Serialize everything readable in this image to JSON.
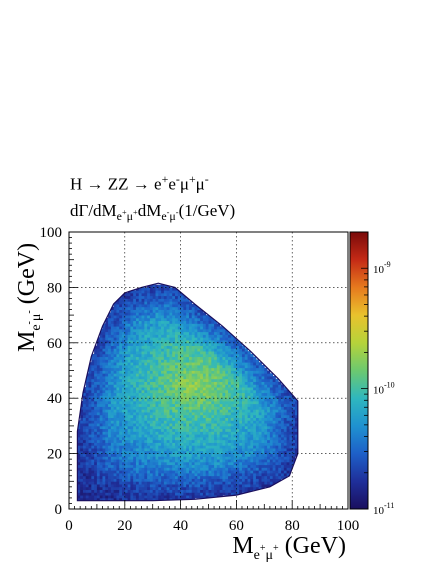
{
  "title": {
    "line1_html": "H &#8594; ZZ &#8594; e<sup>+</sup>e<sup>-</sup>&#956;<sup>+</sup>&#956;<sup>-</sup>",
    "line2_html": "d&#915;/dM<sub>e<sup>+</sup>&#956;<sup>+</sup></sub>dM<sub>e<sup>-</sup>&#956;<sup>-</sup></sub>(1/GeV)",
    "line1": "H → ZZ → e+e-μ+μ-",
    "line2": "dΓ/dMe+μ+dMe-μ-(1/GeV)"
  },
  "chart_data": {
    "type": "heatmap",
    "xlabel": "Me+μ+ (GeV)",
    "ylabel": "Me-μ- (GeV)",
    "xlim": [
      0,
      100
    ],
    "ylim": [
      0,
      100
    ],
    "x_ticks": [
      "0",
      "20",
      "40",
      "60",
      "80",
      "100"
    ],
    "y_ticks": [
      "0",
      "20",
      "40",
      "60",
      "80",
      "100"
    ],
    "grid": true,
    "color_scale": "log",
    "z_range": [
      1e-11,
      2e-09
    ],
    "colorbar_ticks": [
      {
        "base": "10",
        "exp": "-11",
        "value": 1e-11
      },
      {
        "base": "10",
        "exp": "-10",
        "value": 1e-10
      },
      {
        "base": "10",
        "exp": "-9",
        "value": 1e-09
      }
    ],
    "colormap": [
      "#1a0f5e",
      "#1f2f9a",
      "#1e60c8",
      "#1f92d0",
      "#2fb7be",
      "#6cc96f",
      "#b6d33a",
      "#e9c22d",
      "#e67a1e",
      "#c42a16",
      "#7a0a0a"
    ],
    "region_boundary_xy": [
      [
        3,
        3
      ],
      [
        3,
        28
      ],
      [
        5,
        42
      ],
      [
        8,
        55
      ],
      [
        12,
        66
      ],
      [
        16,
        74
      ],
      [
        20,
        78
      ],
      [
        26,
        80
      ],
      [
        32,
        81.5
      ],
      [
        38,
        80
      ],
      [
        45,
        74
      ],
      [
        55,
        66
      ],
      [
        65,
        57
      ],
      [
        75,
        47
      ],
      [
        82,
        39
      ],
      [
        82,
        20
      ],
      [
        79,
        12
      ],
      [
        72,
        8
      ],
      [
        60,
        5
      ],
      [
        45,
        3.5
      ],
      [
        30,
        3
      ],
      [
        15,
        3
      ],
      [
        3,
        3
      ]
    ],
    "peak_xy": [
      45,
      45
    ],
    "peak_value": 1.8e-10,
    "edge_value": 1.5e-11
  }
}
